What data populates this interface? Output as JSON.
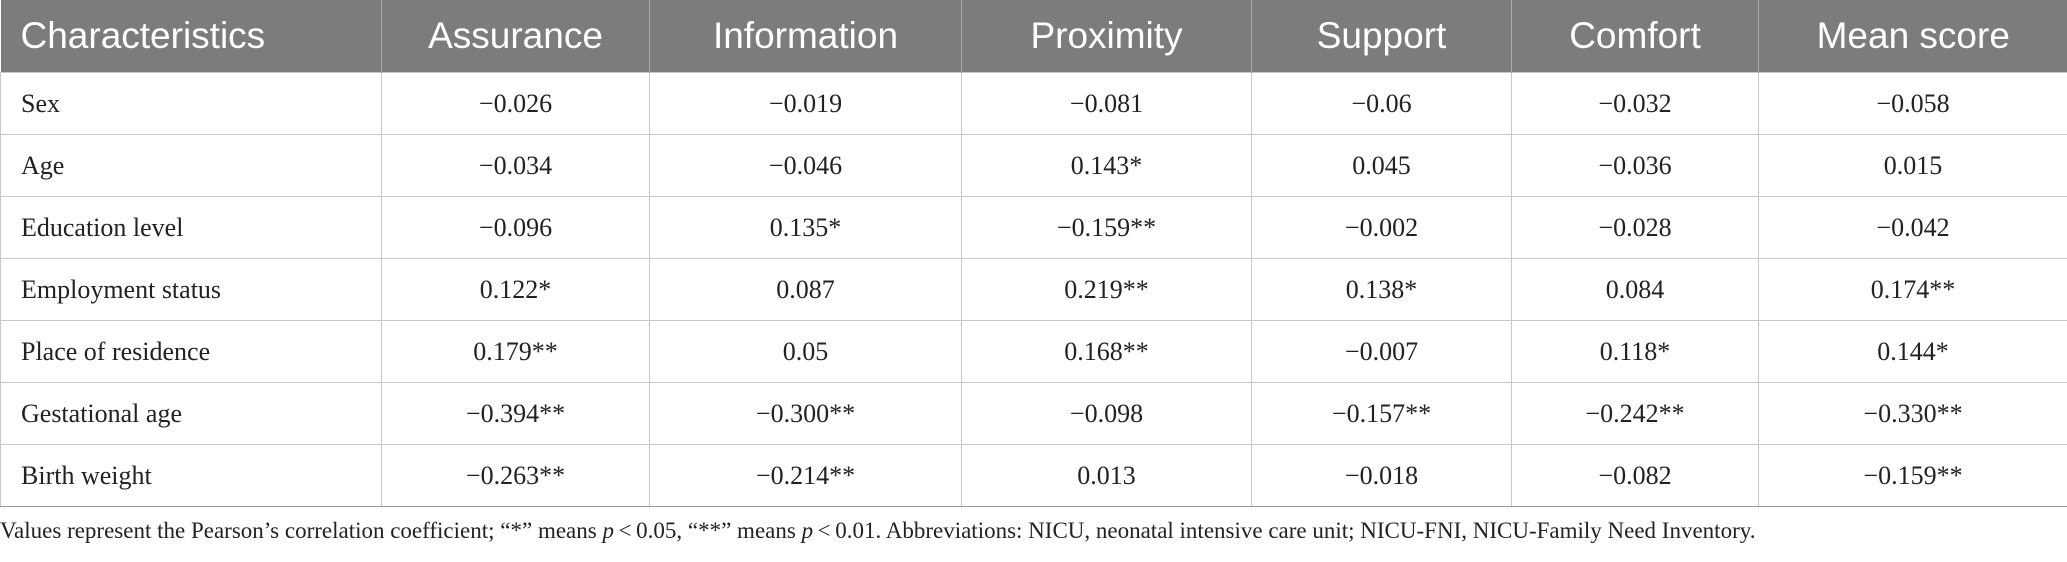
{
  "table": {
    "headers": [
      "Characteristics",
      "Assurance",
      "Information",
      "Proximity",
      "Support",
      "Comfort",
      "Mean score"
    ],
    "rows": [
      {
        "label": "Sex",
        "values": [
          "−0.026",
          "−0.019",
          "−0.081",
          "−0.06",
          "−0.032",
          "−0.058"
        ]
      },
      {
        "label": "Age",
        "values": [
          "−0.034",
          "−0.046",
          "0.143*",
          "0.045",
          "−0.036",
          "0.015"
        ]
      },
      {
        "label": "Education level",
        "values": [
          "−0.096",
          "0.135*",
          "−0.159**",
          "−0.002",
          "−0.028",
          "−0.042"
        ]
      },
      {
        "label": "Employment status",
        "values": [
          "0.122*",
          "0.087",
          "0.219**",
          "0.138*",
          "0.084",
          "0.174**"
        ]
      },
      {
        "label": "Place of residence",
        "values": [
          "0.179**",
          "0.05",
          "0.168**",
          "−0.007",
          "0.118*",
          "0.144*"
        ]
      },
      {
        "label": "Gestational age",
        "values": [
          "−0.394**",
          "−0.300**",
          "−0.098",
          "−0.157**",
          "−0.242**",
          "−0.330**"
        ]
      },
      {
        "label": "Birth weight",
        "values": [
          "−0.263**",
          "−0.214**",
          "0.013",
          "−0.018",
          "−0.082",
          "−0.159**"
        ]
      }
    ]
  },
  "footnote": {
    "part1": "Values represent the Pearson’s correlation coefficient; “*” means ",
    "p1": "p",
    "part2": " < 0.05, “**” means ",
    "p2": "p",
    "part3": " < 0.01. Abbreviations: NICU, neonatal intensive care unit; NICU-FNI, NICU-Family Need Inventory."
  }
}
